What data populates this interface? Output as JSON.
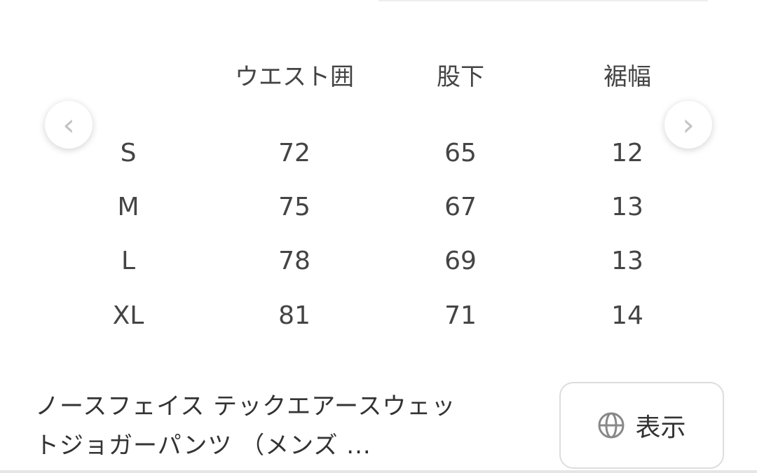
{
  "size_chart": {
    "headers": [
      "",
      "ウエスト囲",
      "股下",
      "裾幅"
    ],
    "rows": [
      [
        "S",
        "72",
        "65",
        "12"
      ],
      [
        "M",
        "75",
        "67",
        "13"
      ],
      [
        "L",
        "78",
        "69",
        "13"
      ],
      [
        "XL",
        "81",
        "71",
        "14"
      ]
    ]
  },
  "carousel": {
    "prev_icon": "chevron-left-icon",
    "next_icon": "chevron-right-icon"
  },
  "product": {
    "title_line1": "ノースフェイス テックエアースウェッ",
    "title_line2": "トジョガーパンツ （メンズ ..."
  },
  "view_button": {
    "icon": "globe-icon",
    "label": "表示"
  }
}
